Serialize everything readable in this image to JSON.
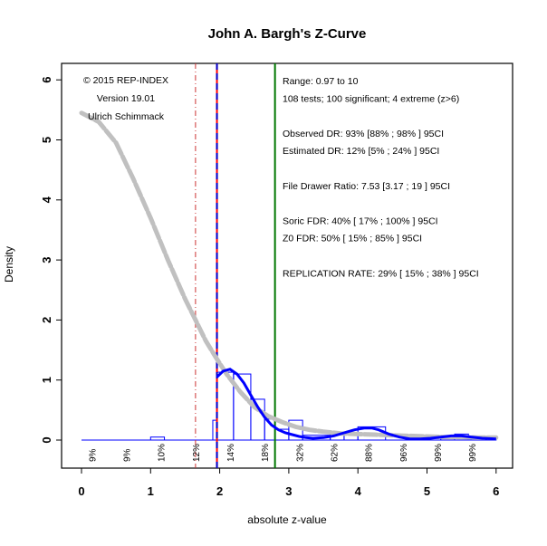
{
  "chart_data": {
    "type": "histogram",
    "title": "John A. Bargh's Z-Curve",
    "xlabel": "absolute z-value",
    "ylabel": "Density",
    "xlim": [
      0,
      6
    ],
    "ylim": [
      0,
      6
    ],
    "x_ticks": [
      "0",
      "1",
      "2",
      "3",
      "4",
      "5",
      "6"
    ],
    "y_ticks": [
      "0",
      "1",
      "2",
      "3",
      "4",
      "5",
      "6"
    ],
    "grid": false,
    "bins": [
      {
        "x0": 1.8,
        "x1": 1.9,
        "density": 0.0
      },
      {
        "x0": 1.9,
        "x1": 1.96,
        "density": 0.33
      },
      {
        "x0": 1.96,
        "x1": 2.2,
        "density": 1.13
      },
      {
        "x0": 2.2,
        "x1": 2.45,
        "density": 1.1
      },
      {
        "x0": 2.45,
        "x1": 2.65,
        "density": 0.68
      },
      {
        "x0": 2.65,
        "x1": 2.8,
        "density": 0.35
      },
      {
        "x0": 2.8,
        "x1": 3.0,
        "density": 0.18
      },
      {
        "x0": 3.0,
        "x1": 3.2,
        "density": 0.33
      },
      {
        "x0": 3.2,
        "x1": 3.6,
        "density": 0.08
      },
      {
        "x0": 3.6,
        "x1": 3.8,
        "density": 0.13
      },
      {
        "x0": 3.8,
        "x1": 4.0,
        "density": 0.09
      },
      {
        "x0": 4.0,
        "x1": 4.4,
        "density": 0.22
      },
      {
        "x0": 4.4,
        "x1": 5.0,
        "density": 0.0
      },
      {
        "x0": 5.0,
        "x1": 5.2,
        "density": 0.05
      },
      {
        "x0": 5.2,
        "x1": 5.4,
        "density": 0.05
      },
      {
        "x0": 5.4,
        "x1": 5.6,
        "density": 0.1
      },
      {
        "x0": 5.6,
        "x1": 6.0,
        "density": 0.02
      },
      {
        "x0": 1.0,
        "x1": 1.2,
        "density": 0.05
      }
    ],
    "series": [
      {
        "x": [
          0,
          0.25,
          0.5,
          0.75,
          1.0,
          1.25,
          1.5,
          1.65,
          1.8,
          1.96,
          2.1,
          2.3,
          2.5,
          2.7,
          2.9,
          3.1,
          3.3,
          3.5,
          3.75,
          4.0,
          4.25,
          4.5,
          4.75,
          5.0,
          5.25,
          5.5,
          5.75,
          6.0
        ],
        "y": [
          5.45,
          5.3,
          4.95,
          4.35,
          3.7,
          3.0,
          2.35,
          2.0,
          1.65,
          1.35,
          1.1,
          0.8,
          0.55,
          0.4,
          0.3,
          0.22,
          0.17,
          0.14,
          0.11,
          0.1,
          0.09,
          0.08,
          0.07,
          0.06,
          0.05,
          0.05,
          0.04,
          0.04
        ],
        "color": "#c0c0c0"
      },
      {
        "x": [
          1.96,
          2.05,
          2.15,
          2.25,
          2.35,
          2.45,
          2.55,
          2.65,
          2.75,
          2.85,
          2.95,
          3.05,
          3.15,
          3.25,
          3.35,
          3.5,
          3.65,
          3.8,
          3.95,
          4.1,
          4.2,
          4.3,
          4.45,
          4.6,
          4.75,
          4.9,
          5.05,
          5.2,
          5.35,
          5.5,
          5.65,
          5.8,
          6.0
        ],
        "y": [
          1.05,
          1.15,
          1.18,
          1.1,
          0.95,
          0.75,
          0.55,
          0.38,
          0.25,
          0.17,
          0.12,
          0.09,
          0.06,
          0.04,
          0.03,
          0.04,
          0.07,
          0.12,
          0.17,
          0.2,
          0.2,
          0.17,
          0.1,
          0.05,
          0.02,
          0.02,
          0.03,
          0.05,
          0.07,
          0.07,
          0.05,
          0.03,
          0.02
        ],
        "color": "#0000ff"
      }
    ],
    "vlines": [
      {
        "x": 1.65,
        "color": "#cc3333",
        "style": "dashdot"
      },
      {
        "x": 1.96,
        "color": "#ff0000",
        "style": "solid"
      },
      {
        "x": 1.96,
        "color": "#0000cc",
        "style": "dashed"
      },
      {
        "x": 2.8,
        "color": "#007700",
        "style": "solid"
      }
    ],
    "power_labels": [
      {
        "x": 0.15,
        "text": "9%"
      },
      {
        "x": 0.65,
        "text": "9%"
      },
      {
        "x": 1.15,
        "text": "10%"
      },
      {
        "x": 1.65,
        "text": "12%"
      },
      {
        "x": 2.15,
        "text": "14%"
      },
      {
        "x": 2.65,
        "text": "18%"
      },
      {
        "x": 3.15,
        "text": "32%"
      },
      {
        "x": 3.65,
        "text": "62%"
      },
      {
        "x": 4.15,
        "text": "88%"
      },
      {
        "x": 4.65,
        "text": "96%"
      },
      {
        "x": 5.15,
        "text": "99%"
      },
      {
        "x": 5.65,
        "text": "99%"
      }
    ],
    "annotations_left": [
      "© 2015 REP-INDEX",
      "Version 19.01",
      "Ulrich Schimmack"
    ],
    "annotations_right": [
      "Range: 0.97 to 10",
      "108 tests; 100 significant; 4 extreme (z>6)",
      "",
      "Observed DR: 93% [88% ; 98% ] 95CI",
      "Estimated DR: 12% [5% ; 24% ] 95CI",
      "",
      "File Drawer Ratio: 7.53 [3.17 ; 19 ] 95CI",
      "",
      "Soric FDR: 40% [ 17% ; 100% ] 95CI",
      "Z0 FDR: 50% [ 15% ; 85% ] 95CI",
      "",
      "REPLICATION RATE: 29% [ 15% ; 38% ] 95CI"
    ]
  }
}
